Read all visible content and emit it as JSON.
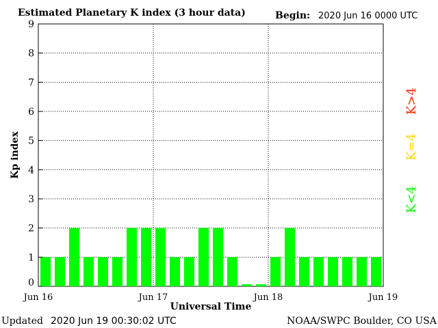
{
  "header": {
    "title": "Estimated Planetary K index (3 hour data)",
    "begin_label": "Begin:",
    "begin_value": "2020 Jun 16 0000 UTC"
  },
  "footer": {
    "updated_label": "Updated",
    "updated_value": "2020 Jun 19 00:30:02 UTC",
    "source": "NOAA/SWPC Boulder, CO USA"
  },
  "legend": {
    "items": [
      {
        "label": "K<4",
        "color": "#00ff00"
      },
      {
        "label": "K=4",
        "color": "#ffd700"
      },
      {
        "label": "K>4",
        "color": "#ff2a00"
      }
    ]
  },
  "chart_data": {
    "type": "bar",
    "ylabel": "Kp index",
    "xlabel": "Universal Time",
    "ylim": [
      0,
      9
    ],
    "yticks": [
      0,
      1,
      2,
      3,
      4,
      5,
      6,
      7,
      8,
      9
    ],
    "xticks": [
      "Jun 16",
      "Jun 17",
      "Jun 18",
      "Jun 19"
    ],
    "grid": "dotted",
    "bar_color": "#00ff00",
    "values": [
      1,
      1,
      2,
      1,
      1,
      1,
      2,
      2,
      2,
      1,
      1,
      2,
      2,
      1,
      0,
      0,
      1,
      2,
      1,
      1,
      1,
      1,
      1,
      1
    ]
  }
}
